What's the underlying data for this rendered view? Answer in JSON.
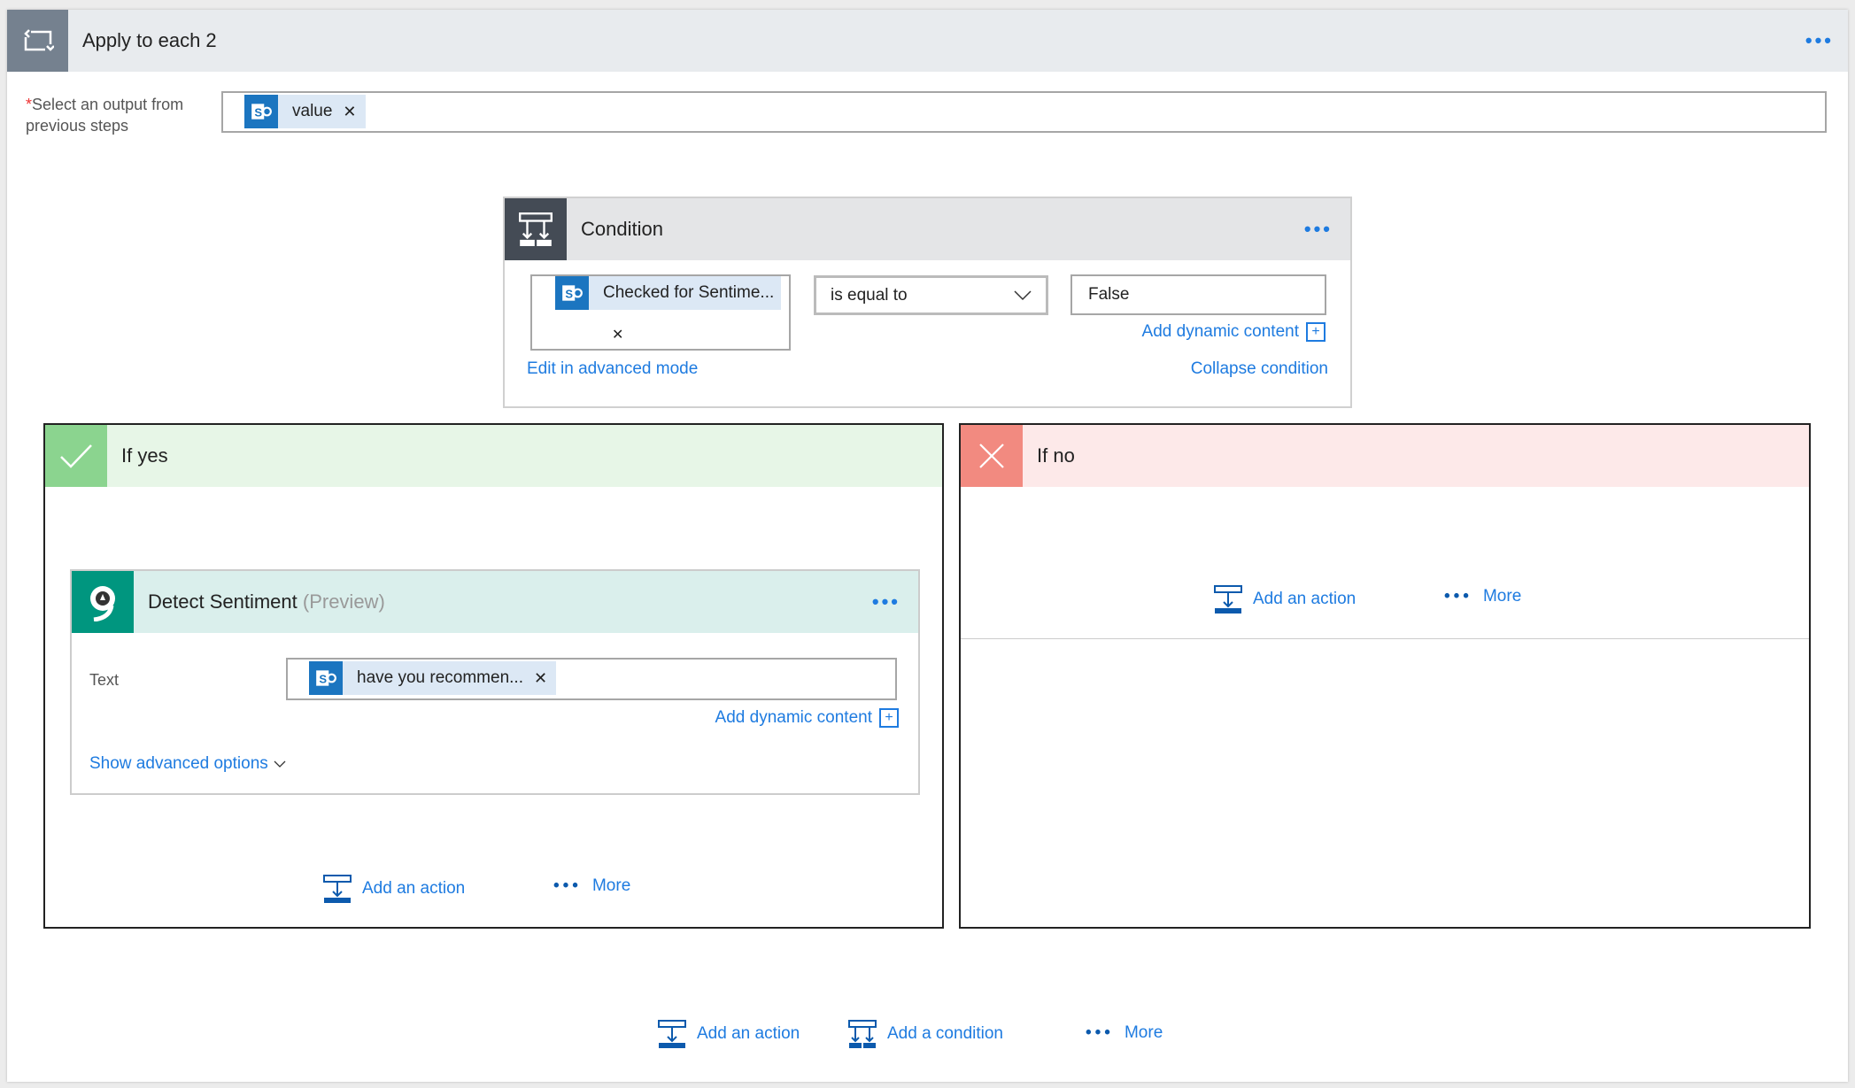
{
  "loop": {
    "title": "Apply to each 2",
    "select_label": "Select an output from previous steps",
    "required_mark": "*",
    "token": "value"
  },
  "condition": {
    "title": "Condition",
    "left_token": "Checked for Sentime...",
    "operator": "is equal to",
    "value": "False",
    "add_dynamic": "Add dynamic content",
    "edit_advanced": "Edit in advanced mode",
    "collapse": "Collapse condition"
  },
  "if_yes": {
    "title": "If yes",
    "add_action": "Add an action",
    "more": "More"
  },
  "if_no": {
    "title": "If no",
    "add_action": "Add an action",
    "more": "More"
  },
  "detect": {
    "title": "Detect Sentiment",
    "badge": "(Preview)",
    "text_label": "Text",
    "token": "have you recommen...",
    "add_dynamic": "Add dynamic content",
    "show_advanced": "Show advanced options"
  },
  "footer": {
    "add_action": "Add an action",
    "add_condition": "Add a condition",
    "more": "More"
  },
  "colors": {
    "accent": "#1e7be0",
    "sharepoint": "#1b75c0",
    "yes": "#8bd48f",
    "no": "#f28a80",
    "sentiment": "#00967f"
  },
  "icons": {
    "loop": "loop-icon",
    "condition": "condition-icon",
    "check": "check-icon",
    "close": "close-icon",
    "sharepoint": "sharepoint-icon"
  }
}
